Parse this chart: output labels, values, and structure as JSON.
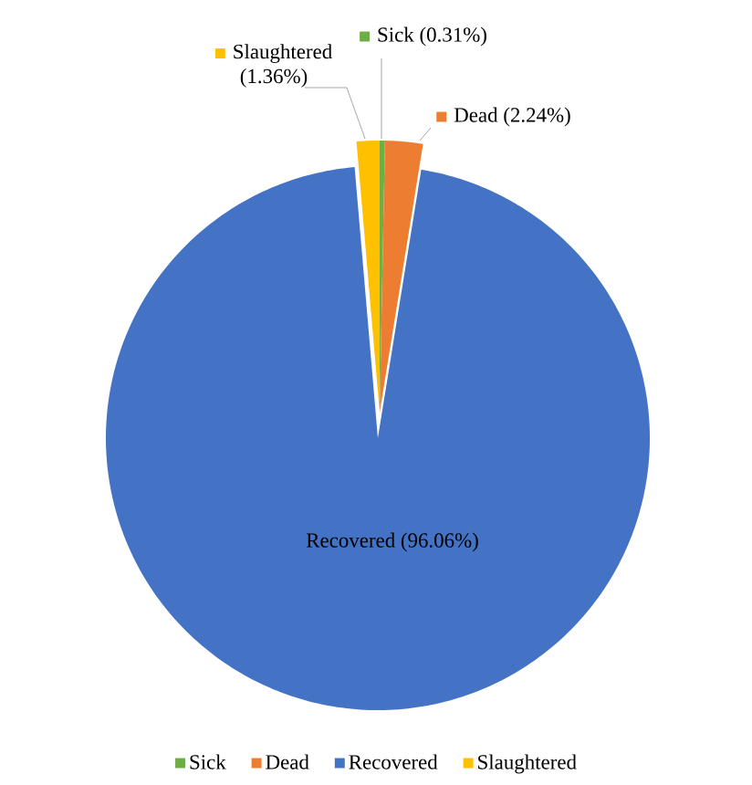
{
  "chart_data": {
    "type": "pie",
    "categories": [
      "Sick",
      "Dead",
      "Recovered",
      "Slaughtered"
    ],
    "values": [
      0.31,
      2.24,
      96.06,
      1.36
    ],
    "value_labels": [
      "Sick (0.31%)",
      "Dead (2.24%)",
      "Recovered (96.06%)",
      "Slaughtered (1.36%)"
    ],
    "colors": [
      "#70ad47",
      "#ed7d31",
      "#4472c4",
      "#ffc000"
    ],
    "legend": "bottom"
  }
}
